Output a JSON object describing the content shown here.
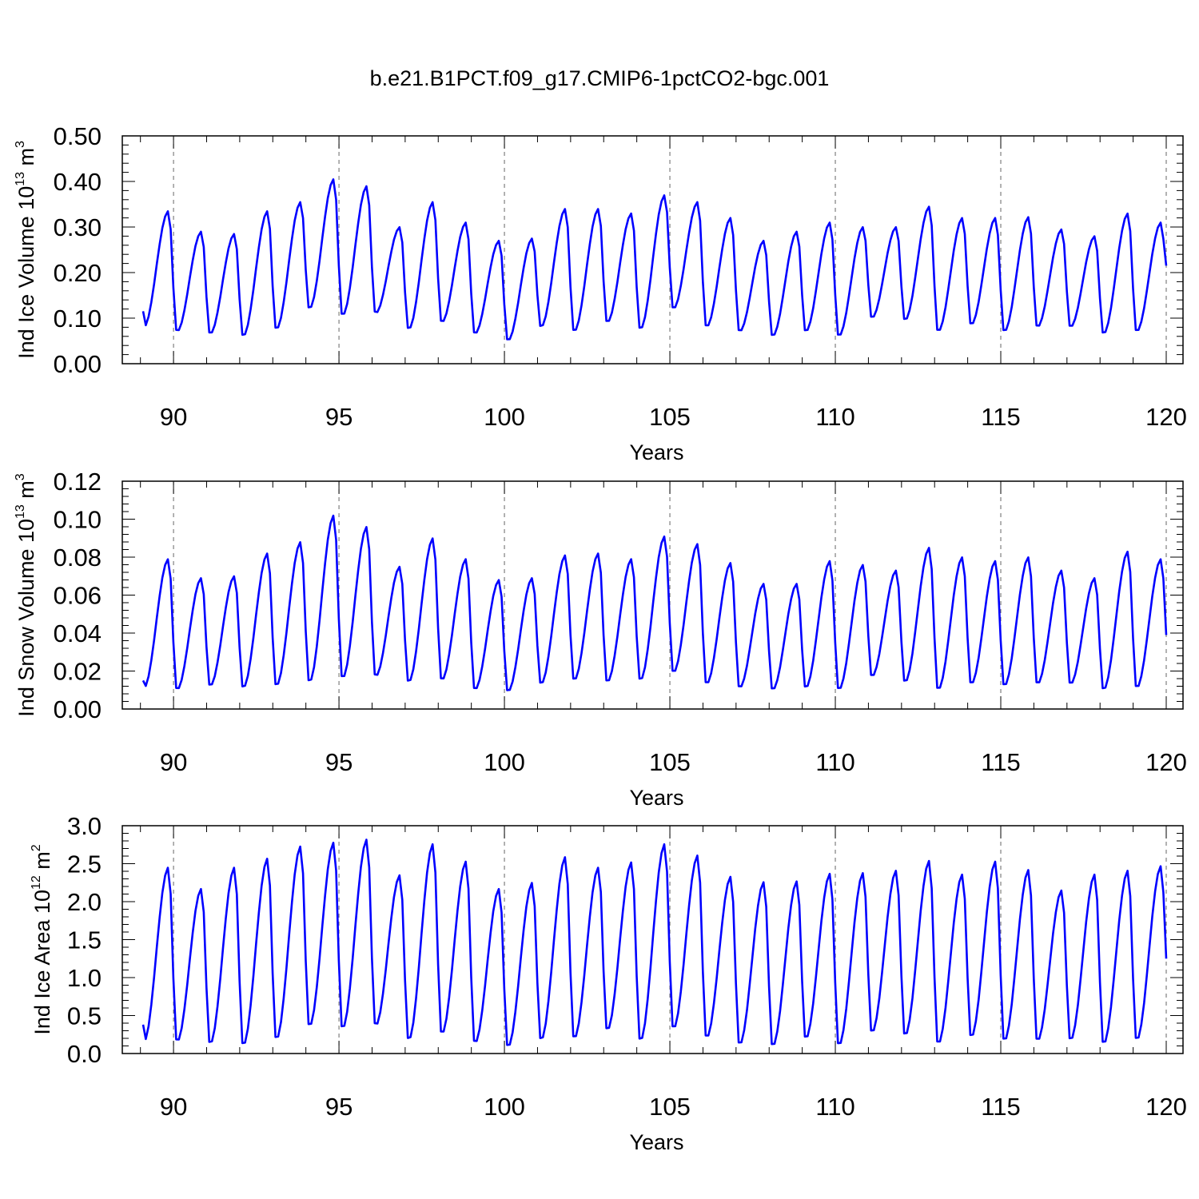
{
  "title": "b.e21.B1PCT.f09_g17.CMIP6-1pctCO2-bgc.001",
  "line_color": "#0000ff",
  "chart_data": [
    {
      "type": "line",
      "ylabel": {
        "text": "Ind Ice Volume 10",
        "exp": "13",
        "unit": " m",
        "unit_exp": "3"
      },
      "xlabel": "Years",
      "xlim": [
        89.08,
        120.0
      ],
      "ylim": [
        0,
        0.5
      ],
      "yticks": [
        "0.00",
        "0.10",
        "0.20",
        "0.30",
        "0.40",
        "0.50"
      ],
      "ytick_values": [
        0,
        0.1,
        0.2,
        0.3,
        0.4,
        0.5
      ],
      "xticks": [
        "90",
        "95",
        "100",
        "105",
        "110",
        "115",
        "120"
      ],
      "xtick_values": [
        90,
        95,
        100,
        105,
        110,
        115,
        120
      ],
      "grid": "vertical dashed at major x ticks",
      "peaks": [
        0.335,
        0.29,
        0.285,
        0.335,
        0.355,
        0.405,
        0.39,
        0.3,
        0.355,
        0.31,
        0.27,
        0.275,
        0.34,
        0.34,
        0.33,
        0.37,
        0.355,
        0.32,
        0.27,
        0.29,
        0.31,
        0.3,
        0.3,
        0.345,
        0.32,
        0.32,
        0.322,
        0.295,
        0.28,
        0.33,
        0.31
      ],
      "troughs": [
        0.08,
        0.07,
        0.065,
        0.06,
        0.075,
        0.12,
        0.105,
        0.11,
        0.075,
        0.09,
        0.065,
        0.05,
        0.08,
        0.07,
        0.09,
        0.075,
        0.12,
        0.08,
        0.07,
        0.06,
        0.07,
        0.06,
        0.1,
        0.095,
        0.07,
        0.085,
        0.07,
        0.08,
        0.08,
        0.065,
        0.07
      ],
      "start": 0.115,
      "end": 0.215
    },
    {
      "type": "line",
      "ylabel": {
        "text": "Ind Snow Volume 10",
        "exp": "13",
        "unit": " m",
        "unit_exp": "3"
      },
      "xlabel": "Years",
      "xlim": [
        89.08,
        120.0
      ],
      "ylim": [
        0,
        0.12
      ],
      "yticks": [
        "0.00",
        "0.02",
        "0.04",
        "0.06",
        "0.08",
        "0.10",
        "0.12"
      ],
      "ytick_values": [
        0,
        0.02,
        0.04,
        0.06,
        0.08,
        0.1,
        0.12
      ],
      "xticks": [
        "90",
        "95",
        "100",
        "105",
        "110",
        "115",
        "120"
      ],
      "xtick_values": [
        90,
        95,
        100,
        105,
        110,
        115,
        120
      ],
      "grid": "vertical dashed at major x ticks",
      "peaks": [
        0.079,
        0.069,
        0.07,
        0.082,
        0.088,
        0.102,
        0.096,
        0.075,
        0.09,
        0.079,
        0.068,
        0.069,
        0.081,
        0.082,
        0.079,
        0.091,
        0.087,
        0.077,
        0.066,
        0.066,
        0.078,
        0.076,
        0.073,
        0.085,
        0.08,
        0.078,
        0.08,
        0.073,
        0.069,
        0.083,
        0.079
      ],
      "troughs": [
        0.011,
        0.01,
        0.012,
        0.011,
        0.012,
        0.014,
        0.016,
        0.017,
        0.014,
        0.015,
        0.01,
        0.009,
        0.013,
        0.015,
        0.014,
        0.015,
        0.019,
        0.013,
        0.011,
        0.01,
        0.011,
        0.01,
        0.017,
        0.014,
        0.01,
        0.013,
        0.012,
        0.013,
        0.013,
        0.01,
        0.011
      ],
      "start": 0.015,
      "end": 0.039
    },
    {
      "type": "line",
      "ylabel": {
        "text": "Ind Ice Area 10",
        "exp": "12",
        "unit": " m",
        "unit_exp": "2"
      },
      "xlabel": "Years",
      "xlim": [
        89.08,
        120.0
      ],
      "ylim": [
        0,
        3.0
      ],
      "yticks": [
        "0.0",
        "0.5",
        "1.0",
        "1.5",
        "2.0",
        "2.5",
        "3.0"
      ],
      "ytick_values": [
        0,
        0.5,
        1.0,
        1.5,
        2.0,
        2.5,
        3.0
      ],
      "xticks": [
        "90",
        "95",
        "100",
        "105",
        "110",
        "115",
        "120"
      ],
      "xtick_values": [
        90,
        95,
        100,
        105,
        110,
        115,
        120
      ],
      "grid": "vertical dashed at major x ticks",
      "peaks": [
        2.45,
        2.17,
        2.45,
        2.57,
        2.73,
        2.78,
        2.82,
        2.35,
        2.76,
        2.53,
        2.17,
        2.25,
        2.59,
        2.45,
        2.52,
        2.76,
        2.61,
        2.33,
        2.26,
        2.27,
        2.37,
        2.38,
        2.41,
        2.54,
        2.36,
        2.53,
        2.42,
        2.15,
        2.36,
        2.41,
        2.47
      ],
      "troughs": [
        0.15,
        0.15,
        0.12,
        0.1,
        0.18,
        0.35,
        0.32,
        0.36,
        0.17,
        0.25,
        0.13,
        0.08,
        0.17,
        0.19,
        0.3,
        0.16,
        0.32,
        0.2,
        0.11,
        0.09,
        0.19,
        0.1,
        0.27,
        0.23,
        0.12,
        0.21,
        0.16,
        0.16,
        0.17,
        0.12,
        0.17
      ],
      "start": 0.38,
      "end": 1.25
    }
  ]
}
